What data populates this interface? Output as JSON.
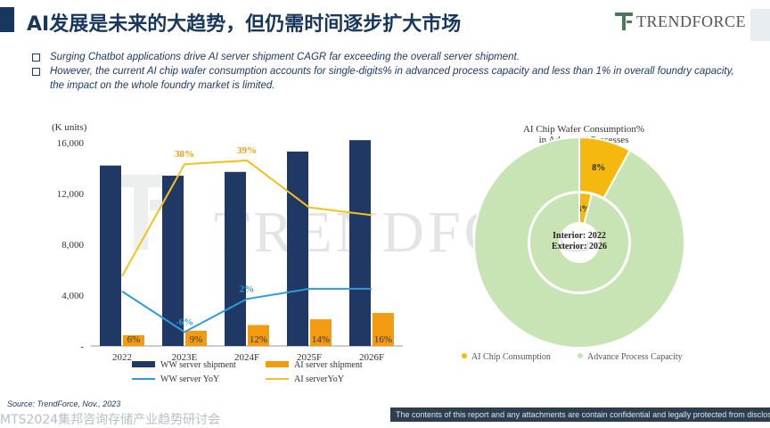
{
  "header": {
    "title": "AI发展是未来的大趋势，但仍需时间逐步扩大市场",
    "logo_text": "TRENDFORCE",
    "logo_icon": "trendforce-logo-icon"
  },
  "bullets": [
    "Surging Chatbot applications drive AI server shipment CAGR far exceeding the overall server shipment.",
    "However, the current AI chip wafer consumption accounts for single-digits% in advanced process capacity and less than 1% in overall foundry capacity, the impact on the whole foundry market is limited."
  ],
  "watermark": "TRENDFORCE",
  "chart_data": [
    {
      "type": "bar",
      "unit_label": "(K units)",
      "categories": [
        "2022",
        "2023E",
        "2024F",
        "2025F",
        "2026F"
      ],
      "ylim": [
        0,
        16000
      ],
      "yticks": [
        "-",
        "4,000",
        "8,000",
        "12,000",
        "16,000"
      ],
      "series": [
        {
          "name": "WW server shipment",
          "kind": "bar",
          "color": "#1f3864",
          "values": [
            14200,
            13400,
            13700,
            15300,
            16200
          ]
        },
        {
          "name": "AI server shipment",
          "kind": "bar",
          "color": "#f39c12",
          "values": [
            850,
            1200,
            1650,
            2100,
            2600
          ]
        },
        {
          "name": "WW server YoY",
          "kind": "line",
          "color": "#2e9be0",
          "values": [
            4300,
            1100,
            3700,
            4500,
            4500
          ]
        },
        {
          "name": "AI serverYoY",
          "kind": "line",
          "color": "#f4c21b",
          "values": [
            5500,
            14300,
            14600,
            10900,
            10300
          ]
        }
      ],
      "ai_bar_labels": [
        "6%",
        "9%",
        "12%",
        "14%",
        "16%"
      ],
      "yoy_labels": [
        {
          "text": "38%",
          "category": "2023E",
          "color": "#f39c12"
        },
        {
          "text": "39%",
          "category": "2024F",
          "color": "#f39c12"
        },
        {
          "text": "-6%",
          "category": "2023E",
          "color": "#2e9be0"
        },
        {
          "text": "2%",
          "category": "2024F",
          "color": "#2e9be0"
        }
      ]
    },
    {
      "type": "pie",
      "title_lines": [
        "AI Chip Wafer Consumption%",
        "in Advanced Processes"
      ],
      "center_lines": [
        "Interior: 2022",
        "Exterior: 2026"
      ],
      "rings": [
        {
          "ring": "interior",
          "year": "2022",
          "values": [
            4,
            96
          ],
          "labels": [
            "4%",
            ""
          ]
        },
        {
          "ring": "exterior",
          "year": "2026",
          "values": [
            8,
            92
          ],
          "labels": [
            "8%",
            ""
          ]
        }
      ],
      "legend": [
        {
          "label": "AI Chip Consumption",
          "color": "#f5b80f"
        },
        {
          "label": "Advance Process Capacity",
          "color": "#c8e3b4"
        }
      ]
    }
  ],
  "source": "Source: TrendForce, Nov., 2023",
  "footer": {
    "left_text": "MTS2024集邦咨询存储产业趋势研讨会",
    "disclaimer": "The contents of this report and any attachments are contain confidential and legally protected from disclosure"
  }
}
